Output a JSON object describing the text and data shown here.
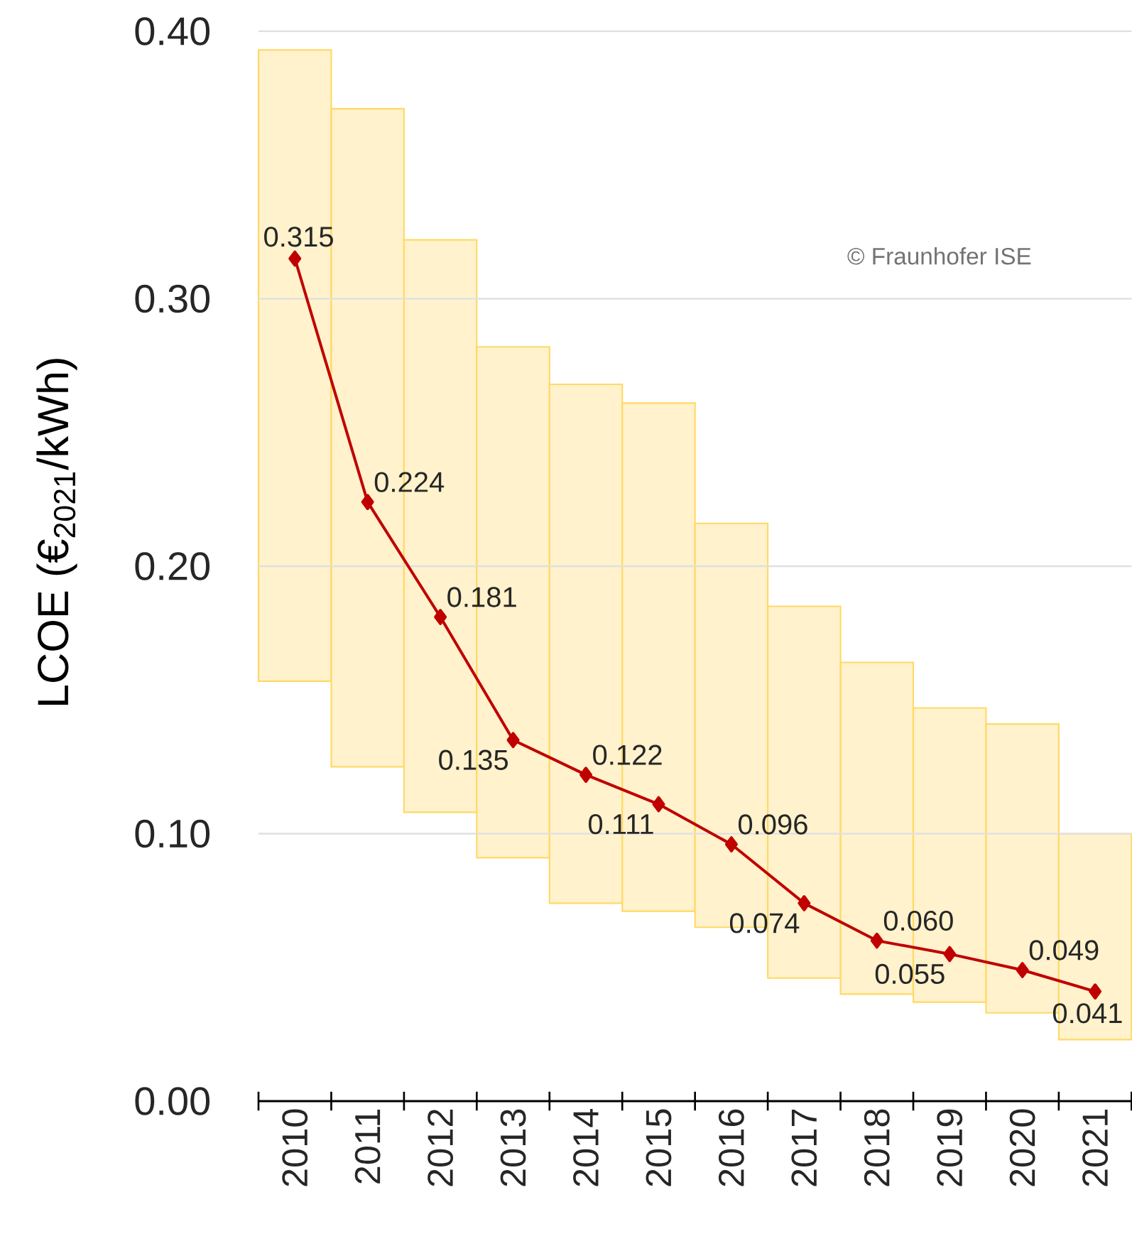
{
  "chart_data": {
    "type": "bar",
    "ylabel": "LCOE  (€$_{2021}$/kWh)",
    "categories": [
      "2010",
      "2011",
      "2012",
      "2013",
      "2014",
      "2015",
      "2016",
      "2017",
      "2018",
      "2019",
      "2020",
      "2021"
    ],
    "series": [
      {
        "color": "#fff2cc",
        "base": [
          0.157,
          0.125,
          0.108,
          0.091,
          0.074,
          0.071,
          0.065,
          0.046,
          0.04,
          0.037,
          0.033,
          0.023
        ],
        "values": [
          0.236,
          0.246,
          0.214,
          0.191,
          0.194,
          0.19,
          0.151,
          0.139,
          0.124,
          0.11,
          0.108,
          0.077
        ]
      },
      {
        "type": "line",
        "color": "#c00000",
        "marker": "diamond",
        "values": [
          0.315,
          0.224,
          0.181,
          0.135,
          0.122,
          0.111,
          0.096,
          0.074,
          0.06,
          0.055,
          0.049,
          0.041
        ],
        "value_labels": [
          "0.315",
          "0.224",
          "0.181",
          "0.135",
          "0.122",
          "0.111",
          "0.096",
          "0.074",
          "0.060",
          "0.055",
          "0.049",
          "0.041"
        ]
      }
    ],
    "ylim": [
      0,
      0.4
    ],
    "yticks": [
      {
        "value": 0,
        "label": "0.00"
      },
      {
        "value": 0.1,
        "label": "0.10"
      },
      {
        "value": 0.2,
        "label": "0.20"
      },
      {
        "value": 0.3,
        "label": "0.30"
      },
      {
        "value": 0.4,
        "label": "0.40"
      }
    ],
    "grid": "y",
    "annotations": [
      "© Fraunhofer ISE"
    ]
  }
}
